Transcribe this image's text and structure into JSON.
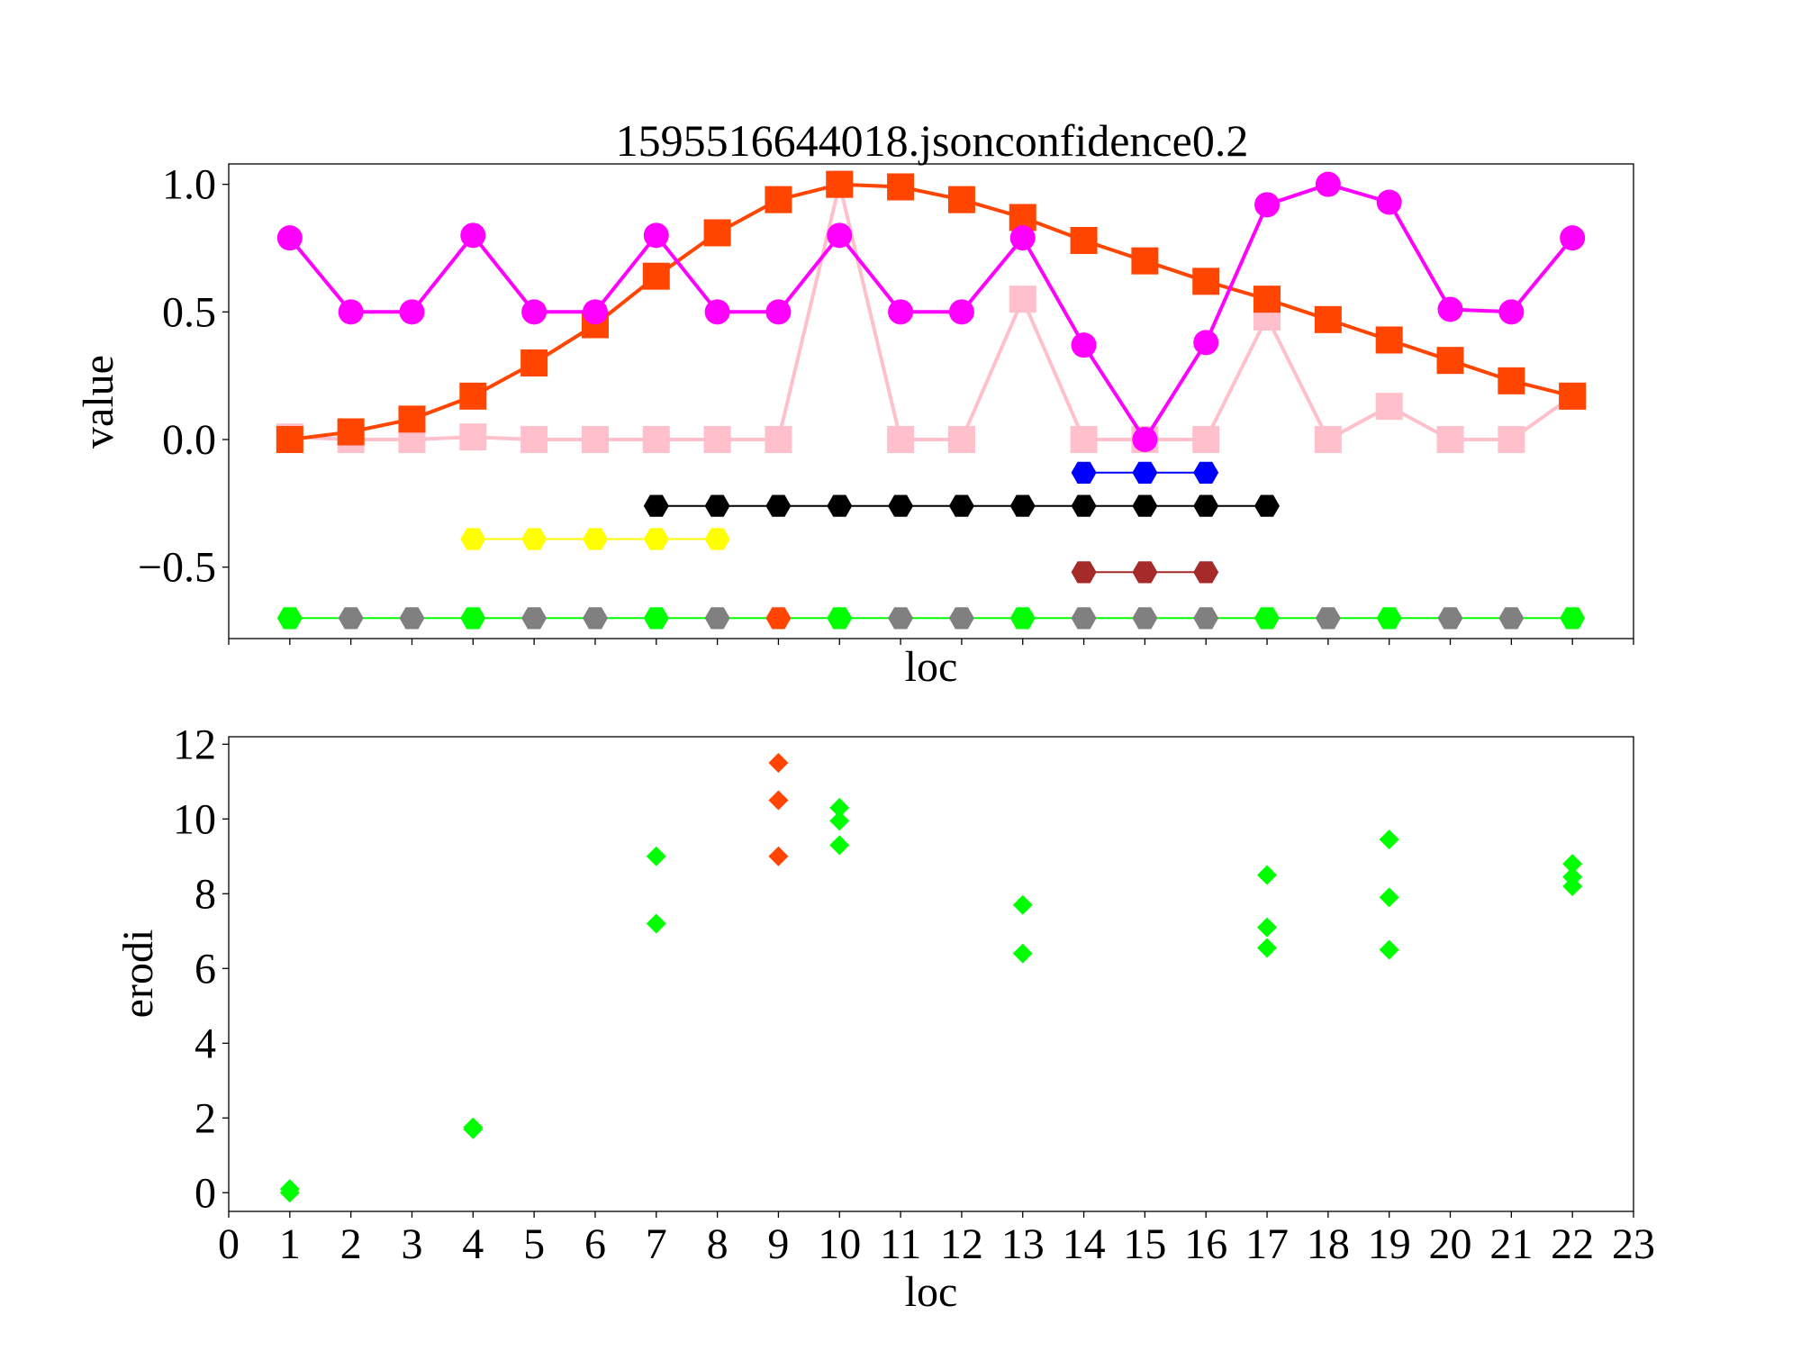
{
  "chart_data": [
    {
      "type": "line",
      "title": "1595516644018.jsonconfidence0.2",
      "xlabel": "loc",
      "ylabel": "value",
      "ylim": [
        -0.78,
        1.08
      ],
      "yticks": [
        1.0,
        0.5,
        0.0,
        -0.5
      ],
      "ytick_labels": [
        "1.0",
        "0.5",
        "0.0",
        "−0.5"
      ],
      "x_tick_labels_visible": false,
      "grid": false,
      "legend": "none",
      "series": [
        {
          "color": "#ffc0cb",
          "marker": "square",
          "x": [
            1,
            2,
            3,
            4,
            5,
            6,
            7,
            8,
            9,
            10,
            11,
            12,
            13,
            14,
            15,
            16,
            17,
            18,
            19,
            20,
            21,
            22
          ],
          "y": [
            0.01,
            0.0,
            0.0,
            0.01,
            0.0,
            0.0,
            0.0,
            0.0,
            0.0,
            1.0,
            0.0,
            0.0,
            0.55,
            0.0,
            0.0,
            0.0,
            0.48,
            0.0,
            0.13,
            0.0,
            0.0,
            0.17
          ]
        },
        {
          "color": "#ff4500",
          "marker": "square",
          "x": [
            1,
            2,
            3,
            4,
            5,
            6,
            7,
            8,
            9,
            10,
            11,
            12,
            13,
            14,
            15,
            16,
            17,
            18,
            19,
            20,
            21,
            22
          ],
          "y": [
            0.0,
            0.03,
            0.08,
            0.17,
            0.3,
            0.45,
            0.64,
            0.81,
            0.94,
            1.0,
            0.99,
            0.94,
            0.87,
            0.78,
            0.7,
            0.62,
            0.55,
            0.47,
            0.39,
            0.31,
            0.23,
            0.17
          ]
        },
        {
          "color": "#ff00ff",
          "marker": "circle",
          "x": [
            1,
            2,
            3,
            4,
            5,
            6,
            7,
            8,
            9,
            10,
            11,
            12,
            13,
            14,
            15,
            16,
            17,
            18,
            19,
            20,
            21,
            22
          ],
          "y": [
            0.79,
            0.5,
            0.5,
            0.8,
            0.5,
            0.5,
            0.8,
            0.5,
            0.5,
            0.8,
            0.5,
            0.5,
            0.79,
            0.37,
            0.0,
            0.38,
            0.92,
            1.0,
            0.93,
            0.51,
            0.5,
            0.79
          ]
        },
        {
          "color": "#0000ff",
          "marker": "hexagon",
          "x": [
            14,
            15,
            16
          ],
          "y": [
            -0.13,
            -0.13,
            -0.13
          ]
        },
        {
          "color": "#000000",
          "marker": "hexagon",
          "x": [
            7,
            8,
            9,
            10,
            11,
            12,
            13,
            14,
            15,
            16,
            17
          ],
          "y": [
            -0.26,
            -0.26,
            -0.26,
            -0.26,
            -0.26,
            -0.26,
            -0.26,
            -0.26,
            -0.26,
            -0.26,
            -0.26
          ]
        },
        {
          "color": "#ffff00",
          "marker": "hexagon",
          "x": [
            4,
            5,
            6,
            7,
            8
          ],
          "y": [
            -0.39,
            -0.39,
            -0.39,
            -0.39,
            -0.39
          ]
        },
        {
          "color": "#a52a2a",
          "marker": "hexagon",
          "x": [
            14,
            15,
            16
          ],
          "y": [
            -0.52,
            -0.52,
            -0.52
          ]
        },
        {
          "color": "#00ff00",
          "marker": "hexagon",
          "x": [
            1,
            2,
            3,
            4,
            5,
            6,
            7,
            8,
            9,
            10,
            11,
            12,
            13,
            14,
            15,
            16,
            17,
            18,
            19,
            20,
            21,
            22
          ],
          "y": [
            -0.7,
            -0.7,
            -0.7,
            -0.7,
            -0.7,
            -0.7,
            -0.7,
            -0.7,
            -0.7,
            -0.7,
            -0.7,
            -0.7,
            -0.7,
            -0.7,
            -0.7,
            -0.7,
            -0.7,
            -0.7,
            -0.7,
            -0.7,
            -0.7,
            -0.7
          ],
          "point_colors": [
            "#00ff00",
            "#808080",
            "#808080",
            "#00ff00",
            "#808080",
            "#808080",
            "#00ff00",
            "#808080",
            "#ff4500",
            "#00ff00",
            "#808080",
            "#808080",
            "#00ff00",
            "#808080",
            "#808080",
            "#808080",
            "#00ff00",
            "#808080",
            "#00ff00",
            "#808080",
            "#808080",
            "#00ff00"
          ]
        }
      ]
    },
    {
      "type": "scatter",
      "title": "",
      "xlabel": "loc",
      "ylabel": "erodi",
      "xlim": [
        0,
        23
      ],
      "ylim": [
        -0.5,
        12.2
      ],
      "xticks": [
        0,
        1,
        2,
        3,
        4,
        5,
        6,
        7,
        8,
        9,
        10,
        11,
        12,
        13,
        14,
        15,
        16,
        17,
        18,
        19,
        20,
        21,
        22,
        23
      ],
      "yticks": [
        0,
        2,
        4,
        6,
        8,
        10,
        12
      ],
      "grid": false,
      "legend": "none",
      "series": [
        {
          "color": "#00ff00",
          "marker": "diamond",
          "x": [
            1,
            1,
            4,
            4,
            7,
            7,
            10,
            10,
            10,
            13,
            13,
            17,
            17,
            17,
            19,
            19,
            19,
            22,
            22,
            22
          ],
          "y": [
            0.0,
            0.1,
            1.7,
            1.75,
            9.0,
            7.2,
            10.3,
            9.95,
            9.3,
            7.7,
            6.4,
            8.5,
            7.1,
            6.55,
            9.45,
            7.9,
            6.5,
            8.8,
            8.45,
            8.2
          ]
        },
        {
          "color": "#ff4500",
          "marker": "diamond",
          "x": [
            9,
            9,
            9
          ],
          "y": [
            11.5,
            10.5,
            9.0
          ]
        }
      ]
    }
  ]
}
